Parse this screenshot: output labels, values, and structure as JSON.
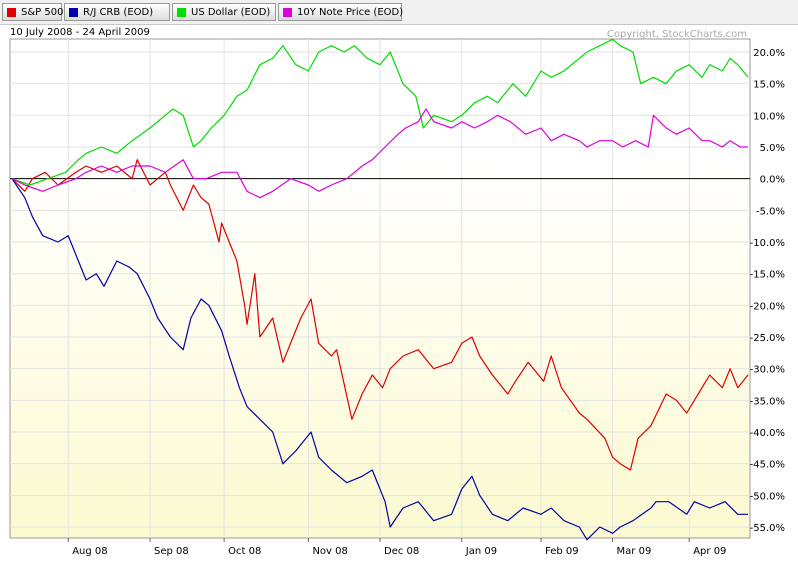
{
  "legend": [
    {
      "label": "S&P 500",
      "color": "#dd0000"
    },
    {
      "label": "R/J CRB (EOD)",
      "color": "#0000aa"
    },
    {
      "label": "US Dollar (EOD)",
      "color": "#00dd00"
    },
    {
      "label": "10Y Note Price (EOD)",
      "color": "#dd00dd"
    }
  ],
  "date_range": "10 July 2008 - 24 April 2009",
  "copyright": "Copyright, StockCharts.com",
  "chart_data": {
    "type": "line",
    "title": "",
    "xlabel": "",
    "ylabel": "",
    "x_range": [
      "2008-07-10",
      "2009-04-24"
    ],
    "ylim": [
      -58,
      23
    ],
    "y_ticks": [
      20,
      15,
      10,
      5,
      0,
      -5,
      -10,
      -15,
      -20,
      -25,
      -30,
      -35,
      -40,
      -45,
      -50,
      -55
    ],
    "y_tick_labels": [
      "20.0%",
      "15.0%",
      "10.0%",
      "5.0%",
      "0.0%",
      "-5.0%",
      "-10.0%",
      "-15.0%",
      "-20.0%",
      "-25.0%",
      "-30.0%",
      "-35.0%",
      "-40.0%",
      "-45.0%",
      "-50.0%",
      "-55.0%"
    ],
    "x_ticks": [
      {
        "label": "Aug 08",
        "date": "2008-08-01"
      },
      {
        "label": "Sep 08",
        "date": "2008-09-02"
      },
      {
        "label": "Oct 08",
        "date": "2008-10-01"
      },
      {
        "label": "Nov 08",
        "date": "2008-11-03"
      },
      {
        "label": "Dec 08",
        "date": "2008-12-01"
      },
      {
        "label": "Jan 09",
        "date": "2009-01-02"
      },
      {
        "label": "Feb 09",
        "date": "2009-02-02"
      },
      {
        "label": "Mar 09",
        "date": "2009-03-02"
      },
      {
        "label": "Apr 09",
        "date": "2009-04-01"
      }
    ],
    "grid": true,
    "legend_position": "top-left",
    "series": [
      {
        "name": "S&P 500",
        "color": "#dd0000",
        "points": [
          [
            "2008-07-10",
            0
          ],
          [
            "2008-07-15",
            -2
          ],
          [
            "2008-07-18",
            0
          ],
          [
            "2008-07-23",
            1
          ],
          [
            "2008-07-28",
            -1
          ],
          [
            "2008-08-04",
            1
          ],
          [
            "2008-08-08",
            2
          ],
          [
            "2008-08-14",
            1
          ],
          [
            "2008-08-20",
            2
          ],
          [
            "2008-08-26",
            0
          ],
          [
            "2008-08-28",
            3
          ],
          [
            "2008-09-02",
            -1
          ],
          [
            "2008-09-08",
            1
          ],
          [
            "2008-09-10",
            -1
          ],
          [
            "2008-09-15",
            -5
          ],
          [
            "2008-09-19",
            -1
          ],
          [
            "2008-09-22",
            -3
          ],
          [
            "2008-09-25",
            -4
          ],
          [
            "2008-09-29",
            -10
          ],
          [
            "2008-09-30",
            -7
          ],
          [
            "2008-10-03",
            -10
          ],
          [
            "2008-10-06",
            -13
          ],
          [
            "2008-10-09",
            -20
          ],
          [
            "2008-10-10",
            -23
          ],
          [
            "2008-10-13",
            -15
          ],
          [
            "2008-10-15",
            -25
          ],
          [
            "2008-10-20",
            -22
          ],
          [
            "2008-10-24",
            -29
          ],
          [
            "2008-10-28",
            -25
          ],
          [
            "2008-10-31",
            -22
          ],
          [
            "2008-11-04",
            -19
          ],
          [
            "2008-11-07",
            -26
          ],
          [
            "2008-11-12",
            -28
          ],
          [
            "2008-11-14",
            -27
          ],
          [
            "2008-11-20",
            -38
          ],
          [
            "2008-11-24",
            -34
          ],
          [
            "2008-11-28",
            -31
          ],
          [
            "2008-12-02",
            -33
          ],
          [
            "2008-12-05",
            -30
          ],
          [
            "2008-12-10",
            -28
          ],
          [
            "2008-12-16",
            -27
          ],
          [
            "2008-12-22",
            -30
          ],
          [
            "2008-12-29",
            -29
          ],
          [
            "2009-01-02",
            -26
          ],
          [
            "2009-01-06",
            -25
          ],
          [
            "2009-01-09",
            -28
          ],
          [
            "2009-01-14",
            -31
          ],
          [
            "2009-01-20",
            -34
          ],
          [
            "2009-01-23",
            -32
          ],
          [
            "2009-01-28",
            -29
          ],
          [
            "2009-02-03",
            -32
          ],
          [
            "2009-02-06",
            -28
          ],
          [
            "2009-02-10",
            -33
          ],
          [
            "2009-02-17",
            -37
          ],
          [
            "2009-02-20",
            -38
          ],
          [
            "2009-02-27",
            -41
          ],
          [
            "2009-03-02",
            -44
          ],
          [
            "2009-03-05",
            -45
          ],
          [
            "2009-03-09",
            -46
          ],
          [
            "2009-03-12",
            -41
          ],
          [
            "2009-03-17",
            -39
          ],
          [
            "2009-03-23",
            -34
          ],
          [
            "2009-03-27",
            -35
          ],
          [
            "2009-03-31",
            -37
          ],
          [
            "2009-04-06",
            -33
          ],
          [
            "2009-04-09",
            -31
          ],
          [
            "2009-04-14",
            -33
          ],
          [
            "2009-04-17",
            -30
          ],
          [
            "2009-04-20",
            -33
          ],
          [
            "2009-04-24",
            -31
          ]
        ]
      },
      {
        "name": "R/J CRB (EOD)",
        "color": "#0000aa",
        "points": [
          [
            "2008-07-10",
            0
          ],
          [
            "2008-07-15",
            -3
          ],
          [
            "2008-07-18",
            -6
          ],
          [
            "2008-07-22",
            -9
          ],
          [
            "2008-07-28",
            -10
          ],
          [
            "2008-08-01",
            -9
          ],
          [
            "2008-08-05",
            -13
          ],
          [
            "2008-08-08",
            -16
          ],
          [
            "2008-08-12",
            -15
          ],
          [
            "2008-08-15",
            -17
          ],
          [
            "2008-08-20",
            -13
          ],
          [
            "2008-08-25",
            -14
          ],
          [
            "2008-08-28",
            -15
          ],
          [
            "2008-09-02",
            -19
          ],
          [
            "2008-09-05",
            -22
          ],
          [
            "2008-09-10",
            -25
          ],
          [
            "2008-09-15",
            -27
          ],
          [
            "2008-09-18",
            -22
          ],
          [
            "2008-09-22",
            -19
          ],
          [
            "2008-09-25",
            -20
          ],
          [
            "2008-09-30",
            -24
          ],
          [
            "2008-10-03",
            -28
          ],
          [
            "2008-10-07",
            -33
          ],
          [
            "2008-10-10",
            -36
          ],
          [
            "2008-10-15",
            -38
          ],
          [
            "2008-10-20",
            -40
          ],
          [
            "2008-10-24",
            -45
          ],
          [
            "2008-10-29",
            -43
          ],
          [
            "2008-11-04",
            -40
          ],
          [
            "2008-11-07",
            -44
          ],
          [
            "2008-11-12",
            -46
          ],
          [
            "2008-11-18",
            -48
          ],
          [
            "2008-11-24",
            -47
          ],
          [
            "2008-11-28",
            -46
          ],
          [
            "2008-12-03",
            -51
          ],
          [
            "2008-12-05",
            -55
          ],
          [
            "2008-12-10",
            -52
          ],
          [
            "2008-12-16",
            -51
          ],
          [
            "2008-12-22",
            -54
          ],
          [
            "2008-12-29",
            -53
          ],
          [
            "2009-01-02",
            -49
          ],
          [
            "2009-01-06",
            -47
          ],
          [
            "2009-01-09",
            -50
          ],
          [
            "2009-01-14",
            -53
          ],
          [
            "2009-01-20",
            -54
          ],
          [
            "2009-01-26",
            -52
          ],
          [
            "2009-02-02",
            -53
          ],
          [
            "2009-02-06",
            -52
          ],
          [
            "2009-02-11",
            -54
          ],
          [
            "2009-02-17",
            -55
          ],
          [
            "2009-02-20",
            -57
          ],
          [
            "2009-02-25",
            -55
          ],
          [
            "2009-03-02",
            -56
          ],
          [
            "2009-03-05",
            -55
          ],
          [
            "2009-03-10",
            -54
          ],
          [
            "2009-03-17",
            -52
          ],
          [
            "2009-03-19",
            -51
          ],
          [
            "2009-03-24",
            -51
          ],
          [
            "2009-03-31",
            -53
          ],
          [
            "2009-04-03",
            -51
          ],
          [
            "2009-04-09",
            -52
          ],
          [
            "2009-04-15",
            -51
          ],
          [
            "2009-04-20",
            -53
          ],
          [
            "2009-04-24",
            -53
          ]
        ]
      },
      {
        "name": "US Dollar (EOD)",
        "color": "#00dd00",
        "points": [
          [
            "2008-07-10",
            0
          ],
          [
            "2008-07-17",
            -1
          ],
          [
            "2008-07-24",
            0
          ],
          [
            "2008-07-31",
            1
          ],
          [
            "2008-08-05",
            3
          ],
          [
            "2008-08-08",
            4
          ],
          [
            "2008-08-14",
            5
          ],
          [
            "2008-08-20",
            4
          ],
          [
            "2008-08-26",
            6
          ],
          [
            "2008-09-02",
            8
          ],
          [
            "2008-09-08",
            10
          ],
          [
            "2008-09-11",
            11
          ],
          [
            "2008-09-15",
            10
          ],
          [
            "2008-09-19",
            5
          ],
          [
            "2008-09-22",
            6
          ],
          [
            "2008-09-26",
            8
          ],
          [
            "2008-10-01",
            10
          ],
          [
            "2008-10-06",
            13
          ],
          [
            "2008-10-10",
            14
          ],
          [
            "2008-10-15",
            18
          ],
          [
            "2008-10-20",
            19
          ],
          [
            "2008-10-24",
            21
          ],
          [
            "2008-10-29",
            18
          ],
          [
            "2008-11-03",
            17
          ],
          [
            "2008-11-07",
            20
          ],
          [
            "2008-11-12",
            21
          ],
          [
            "2008-11-17",
            20
          ],
          [
            "2008-11-21",
            21
          ],
          [
            "2008-11-26",
            19
          ],
          [
            "2008-12-01",
            18
          ],
          [
            "2008-12-05",
            20
          ],
          [
            "2008-12-10",
            15
          ],
          [
            "2008-12-15",
            13
          ],
          [
            "2008-12-18",
            8
          ],
          [
            "2008-12-22",
            10
          ],
          [
            "2008-12-29",
            9
          ],
          [
            "2009-01-02",
            10
          ],
          [
            "2009-01-07",
            12
          ],
          [
            "2009-01-12",
            13
          ],
          [
            "2009-01-16",
            12
          ],
          [
            "2009-01-22",
            15
          ],
          [
            "2009-01-27",
            13
          ],
          [
            "2009-02-02",
            17
          ],
          [
            "2009-02-06",
            16
          ],
          [
            "2009-02-11",
            17
          ],
          [
            "2009-02-17",
            19
          ],
          [
            "2009-02-20",
            20
          ],
          [
            "2009-02-25",
            21
          ],
          [
            "2009-03-02",
            22
          ],
          [
            "2009-03-05",
            21
          ],
          [
            "2009-03-10",
            20
          ],
          [
            "2009-03-13",
            15
          ],
          [
            "2009-03-18",
            16
          ],
          [
            "2009-03-23",
            15
          ],
          [
            "2009-03-27",
            17
          ],
          [
            "2009-04-01",
            18
          ],
          [
            "2009-04-06",
            16
          ],
          [
            "2009-04-09",
            18
          ],
          [
            "2009-04-14",
            17
          ],
          [
            "2009-04-17",
            19
          ],
          [
            "2009-04-20",
            18
          ],
          [
            "2009-04-24",
            16
          ]
        ]
      },
      {
        "name": "10Y Note Price (EOD)",
        "color": "#dd00dd",
        "points": [
          [
            "2008-07-10",
            0
          ],
          [
            "2008-07-15",
            -1
          ],
          [
            "2008-07-22",
            -2
          ],
          [
            "2008-07-28",
            -1
          ],
          [
            "2008-08-04",
            0
          ],
          [
            "2008-08-08",
            1
          ],
          [
            "2008-08-14",
            2
          ],
          [
            "2008-08-20",
            1
          ],
          [
            "2008-08-26",
            2
          ],
          [
            "2008-09-02",
            2
          ],
          [
            "2008-09-08",
            1
          ],
          [
            "2008-09-15",
            3
          ],
          [
            "2008-09-19",
            0
          ],
          [
            "2008-09-24",
            0
          ],
          [
            "2008-09-30",
            1
          ],
          [
            "2008-10-06",
            1
          ],
          [
            "2008-10-10",
            -2
          ],
          [
            "2008-10-15",
            -3
          ],
          [
            "2008-10-20",
            -2
          ],
          [
            "2008-10-27",
            0
          ],
          [
            "2008-11-03",
            -1
          ],
          [
            "2008-11-07",
            -2
          ],
          [
            "2008-11-12",
            -1
          ],
          [
            "2008-11-18",
            0
          ],
          [
            "2008-11-24",
            2
          ],
          [
            "2008-11-28",
            3
          ],
          [
            "2008-12-03",
            5
          ],
          [
            "2008-12-08",
            7
          ],
          [
            "2008-12-11",
            8
          ],
          [
            "2008-12-16",
            9
          ],
          [
            "2008-12-19",
            11
          ],
          [
            "2008-12-22",
            9
          ],
          [
            "2008-12-29",
            8
          ],
          [
            "2009-01-02",
            9
          ],
          [
            "2009-01-07",
            8
          ],
          [
            "2009-01-12",
            9
          ],
          [
            "2009-01-16",
            10
          ],
          [
            "2009-01-21",
            9
          ],
          [
            "2009-01-27",
            7
          ],
          [
            "2009-02-02",
            8
          ],
          [
            "2009-02-06",
            6
          ],
          [
            "2009-02-11",
            7
          ],
          [
            "2009-02-17",
            6
          ],
          [
            "2009-02-20",
            5
          ],
          [
            "2009-02-25",
            6
          ],
          [
            "2009-03-02",
            6
          ],
          [
            "2009-03-06",
            5
          ],
          [
            "2009-03-11",
            6
          ],
          [
            "2009-03-16",
            5
          ],
          [
            "2009-03-18",
            10
          ],
          [
            "2009-03-23",
            8
          ],
          [
            "2009-03-27",
            7
          ],
          [
            "2009-04-01",
            8
          ],
          [
            "2009-04-06",
            6
          ],
          [
            "2009-04-09",
            6
          ],
          [
            "2009-04-14",
            5
          ],
          [
            "2009-04-17",
            6
          ],
          [
            "2009-04-21",
            5
          ],
          [
            "2009-04-24",
            5
          ]
        ]
      }
    ]
  }
}
